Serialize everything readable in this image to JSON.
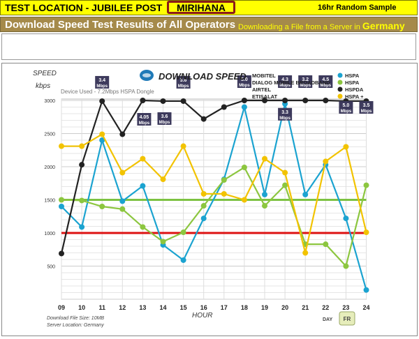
{
  "header": {
    "title": "TEST LOCATION - JUBILEE POST",
    "location": "MIRIHANA",
    "sample": "16hr Random Sample"
  },
  "subheader": {
    "title": "Download Speed Test Results of All Operators",
    "downloading": "Downloading a File from a Server in",
    "country": "Germany"
  },
  "chart_data": {
    "type": "line",
    "title": "DOWNLOAD SPEED",
    "device": "Device Used - 7.2Mbps HSPA Dongle",
    "ylabel": "SPEED",
    "yunit": "kbps",
    "xlabel": "HOUR",
    "x": [
      "09",
      "10",
      "11",
      "12",
      "13",
      "14",
      "15",
      "16",
      "17",
      "18",
      "19",
      "20",
      "21",
      "22",
      "23",
      "24"
    ],
    "ylim": [
      0,
      3000
    ],
    "yticks": [
      500,
      1000,
      1500,
      2000,
      2500,
      3000
    ],
    "grid": true,
    "series": [
      {
        "name": "MOBITEL",
        "type": "HSPA",
        "color": "#1ba3d0",
        "values": [
          1400,
          1090,
          2400,
          1480,
          1710,
          820,
          590,
          1220,
          1810,
          2900,
          1580,
          2950,
          1580,
          2030,
          1220,
          140
        ]
      },
      {
        "name": "DIALOG MOBILE BROADBAND",
        "type": "HSPA",
        "color": "#8cc63f",
        "values": [
          1500,
          1490,
          1400,
          1360,
          1090,
          870,
          1010,
          1410,
          1800,
          1990,
          1410,
          1720,
          830,
          830,
          500,
          1720
        ]
      },
      {
        "name": "AIRTEL",
        "type": "HSPDA",
        "color": "#222222",
        "values": [
          690,
          2030,
          2990,
          2490,
          3000,
          2990,
          2990,
          2720,
          2900,
          3000,
          3000,
          3000,
          3000,
          3000,
          2990,
          2990
        ]
      },
      {
        "name": "ETISALAT",
        "type": "HSPA +",
        "color": "#f2c300",
        "values": [
          2310,
          2310,
          2490,
          1910,
          2120,
          1810,
          2310,
          1590,
          1590,
          1500,
          2120,
          1910,
          700,
          2080,
          2300,
          1010
        ]
      }
    ],
    "reference_lines": [
      {
        "value": 1500,
        "color": "#7dc242"
      },
      {
        "value": 1000,
        "color": "#dd1111"
      }
    ],
    "callouts": [
      {
        "label": "3.4 Mbps",
        "x": "11",
        "y": 2990
      },
      {
        "label": "4.05 Mbps",
        "x": "13",
        "y": 3000
      },
      {
        "label": "3.6 Mbps",
        "x": "14",
        "y": 2990
      },
      {
        "label": "3.6 Mbps",
        "x": "15",
        "y": 2990
      },
      {
        "label": "5.0 Mbps",
        "x": "18",
        "y": 3000
      },
      {
        "label": "4.3 Mbps",
        "x": "20",
        "y": 3000
      },
      {
        "label": "3.3 Mbps",
        "x": "20",
        "y": 2950
      },
      {
        "label": "3.2 Mbps",
        "x": "21",
        "y": 3000
      },
      {
        "label": "4.5 Mbps",
        "x": "22",
        "y": 3000
      },
      {
        "label": "5.0 Mbps",
        "x": "23",
        "y": 2990
      },
      {
        "label": "3.5 Mbps",
        "x": "24",
        "y": 2990
      }
    ],
    "footer": {
      "file_size": "Download File Size: 10MB",
      "server": "Server Location:  Germany",
      "day_label": "DAY",
      "day_value": "FR"
    }
  }
}
